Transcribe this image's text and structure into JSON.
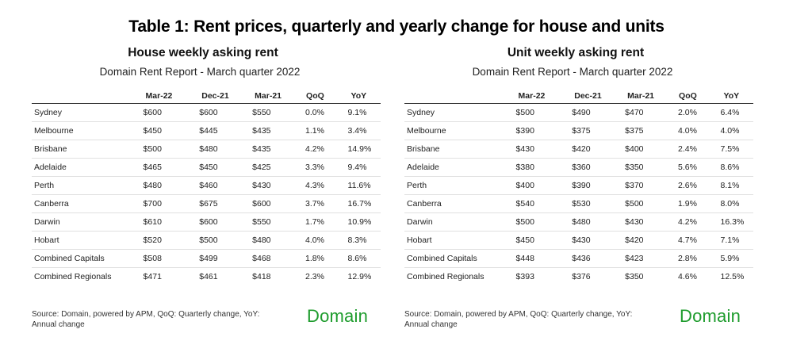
{
  "title": "Table 1: Rent prices, quarterly and yearly change for house and units",
  "columns": [
    "Mar-22",
    "Dec-21",
    "Mar-21",
    "QoQ",
    "YoY"
  ],
  "house": {
    "heading": "House weekly asking rent",
    "subheading": "Domain Rent Report - March quarter 2022",
    "rows": [
      [
        "Sydney",
        "$600",
        "$600",
        "$550",
        "0.0%",
        "9.1%"
      ],
      [
        "Melbourne",
        "$450",
        "$445",
        "$435",
        "1.1%",
        "3.4%"
      ],
      [
        "Brisbane",
        "$500",
        "$480",
        "$435",
        "4.2%",
        "14.9%"
      ],
      [
        "Adelaide",
        "$465",
        "$450",
        "$425",
        "3.3%",
        "9.4%"
      ],
      [
        "Perth",
        "$480",
        "$460",
        "$430",
        "4.3%",
        "11.6%"
      ],
      [
        "Canberra",
        "$700",
        "$675",
        "$600",
        "3.7%",
        "16.7%"
      ],
      [
        "Darwin",
        "$610",
        "$600",
        "$550",
        "1.7%",
        "10.9%"
      ],
      [
        "Hobart",
        "$520",
        "$500",
        "$480",
        "4.0%",
        "8.3%"
      ],
      [
        "Combined Capitals",
        "$508",
        "$499",
        "$468",
        "1.8%",
        "8.6%"
      ],
      [
        "Combined Regionals",
        "$471",
        "$461",
        "$418",
        "2.3%",
        "12.9%"
      ]
    ],
    "source": "Source: Domain, powered by APM, QoQ: Quarterly change, YoY: Annual change",
    "logo": "Domain"
  },
  "unit": {
    "heading": "Unit weekly asking rent",
    "subheading": "Domain Rent Report - March quarter 2022",
    "rows": [
      [
        "Sydney",
        "$500",
        "$490",
        "$470",
        "2.0%",
        "6.4%"
      ],
      [
        "Melbourne",
        "$390",
        "$375",
        "$375",
        "4.0%",
        "4.0%"
      ],
      [
        "Brisbane",
        "$430",
        "$420",
        "$400",
        "2.4%",
        "7.5%"
      ],
      [
        "Adelaide",
        "$380",
        "$360",
        "$350",
        "5.6%",
        "8.6%"
      ],
      [
        "Perth",
        "$400",
        "$390",
        "$370",
        "2.6%",
        "8.1%"
      ],
      [
        "Canberra",
        "$540",
        "$530",
        "$500",
        "1.9%",
        "8.0%"
      ],
      [
        "Darwin",
        "$500",
        "$480",
        "$430",
        "4.2%",
        "16.3%"
      ],
      [
        "Hobart",
        "$450",
        "$430",
        "$420",
        "4.7%",
        "7.1%"
      ],
      [
        "Combined Capitals",
        "$448",
        "$436",
        "$423",
        "2.8%",
        "5.9%"
      ],
      [
        "Combined Regionals",
        "$393",
        "$376",
        "$350",
        "4.6%",
        "12.5%"
      ]
    ],
    "source": "Source: Domain, powered by APM, QoQ: Quarterly change, YoY: Annual change",
    "logo": "Domain"
  },
  "colors": {
    "logo": "#1e9c2d",
    "header_rule": "#333333",
    "row_rule": "#e0e0e0"
  }
}
